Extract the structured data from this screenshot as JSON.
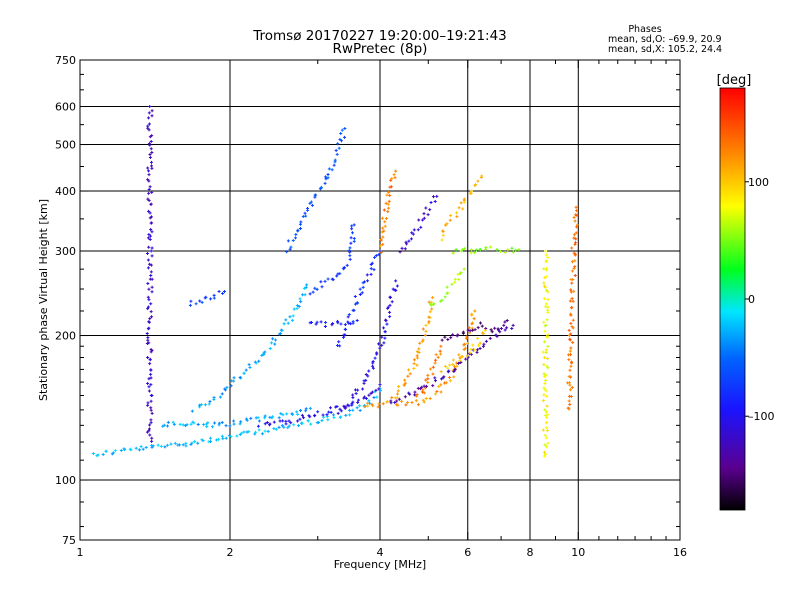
{
  "chart_data": {
    "type": "scatter",
    "title": "Tromsø 20170227 19:20:00–19:21:43",
    "subtitle": "RwPretec (8p)",
    "xlabel": "Frequency [MHz]",
    "ylabel": "Stationary phase Virtual Height [km]",
    "x_scale": "log",
    "y_scale": "log",
    "xlim": [
      1,
      16
    ],
    "ylim": [
      75,
      750
    ],
    "x_ticks": [
      1,
      2,
      4,
      6,
      8,
      10,
      16
    ],
    "y_ticks": [
      75,
      100,
      200,
      300,
      400,
      500,
      600,
      750
    ],
    "x_tick_labels": [
      "1",
      "2",
      "4",
      "6",
      "8",
      "10",
      "16"
    ],
    "y_tick_labels": [
      "75",
      "100",
      "200",
      "300",
      "400",
      "500",
      "600",
      "750"
    ],
    "grid": true,
    "stats": {
      "heading": "Phases",
      "o_line": "mean, sd,O: –69.9, 20.9",
      "x_line": "mean, sd,X: 105.2, 24.4"
    },
    "colorbar": {
      "label": "[deg]",
      "range": [
        -180,
        180
      ],
      "ticks": [
        100,
        0,
        -100
      ],
      "tick_labels": [
        "100",
        "0",
        "–100"
      ]
    },
    "point_colormap": "rainbow (black → purple → blue → cyan → green → yellow → orange → red)",
    "traces": [
      {
        "x": [
          1.06,
          1.2,
          1.4,
          1.6,
          1.8,
          2.0,
          2.2,
          2.4,
          2.6,
          2.8,
          3.0,
          3.2,
          3.4,
          3.6,
          3.8,
          4.0
        ],
        "y": [
          113,
          115,
          117,
          119,
          121,
          123,
          125,
          127,
          129,
          131,
          133,
          135,
          137,
          140,
          145,
          155
        ],
        "phase": -25
      },
      {
        "x": [
          1.45,
          1.6,
          1.8,
          2.0,
          2.3,
          2.6,
          2.9
        ],
        "y": [
          130,
          131,
          130,
          131,
          134,
          137,
          141
        ],
        "phase": -30
      },
      {
        "x": [
          1.7,
          1.9,
          2.1,
          2.3,
          2.5,
          2.7,
          2.85
        ],
        "y": [
          140,
          150,
          165,
          180,
          200,
          225,
          255
        ],
        "phase": -30
      },
      {
        "x": [
          2.3,
          2.6,
          2.9,
          3.1,
          3.3,
          3.6,
          3.8,
          4.0
        ],
        "y": [
          130,
          132,
          136,
          138,
          141,
          145,
          150,
          158
        ],
        "phase": -105
      },
      {
        "x": [
          3.3,
          3.5,
          3.7,
          3.9,
          4.1,
          4.3
        ],
        "y": [
          138,
          145,
          158,
          175,
          205,
          260
        ],
        "phase": -105
      },
      {
        "x": [
          3.7,
          3.9,
          4.1,
          4.3,
          4.5,
          4.7,
          4.9,
          5.1
        ],
        "y": [
          143,
          143,
          145,
          150,
          160,
          175,
          200,
          240
        ],
        "phase": 115
      },
      {
        "x": [
          4.3,
          4.5,
          4.7,
          4.9,
          5.1,
          5.3
        ],
        "y": [
          143,
          145,
          147,
          155,
          170,
          190
        ],
        "phase": 130
      },
      {
        "x": [
          4.8,
          5.0,
          5.2,
          5.4,
          5.6,
          5.8,
          6.0,
          6.2
        ],
        "y": [
          145,
          148,
          152,
          158,
          165,
          180,
          200,
          225
        ],
        "phase": 120
      },
      {
        "x": [
          4.2,
          4.6,
          5.0,
          5.4,
          5.8,
          6.2,
          6.6,
          7.0,
          7.4
        ],
        "y": [
          145,
          150,
          158,
          165,
          175,
          185,
          195,
          205,
          210
        ],
        "phase": -130
      },
      {
        "x": [
          5.3,
          5.6,
          6.0,
          6.4,
          6.8,
          7.2
        ],
        "y": [
          195,
          200,
          205,
          210,
          205,
          215
        ],
        "phase": -150
      },
      {
        "x": [
          2.9,
          3.0,
          3.2,
          3.4,
          3.5,
          3.55
        ],
        "y": [
          245,
          252,
          262,
          275,
          300,
          340
        ],
        "phase": -75
      },
      {
        "x": [
          3.3,
          3.4,
          3.5,
          3.6,
          3.8,
          4.0
        ],
        "y": [
          190,
          205,
          220,
          240,
          270,
          300
        ],
        "phase": -80
      },
      {
        "x": [
          2.9,
          3.1,
          3.3,
          3.6
        ],
        "y": [
          215,
          210,
          212,
          215
        ],
        "phase": -90
      },
      {
        "x": [
          5.0,
          5.3,
          5.5,
          5.7,
          5.9
        ],
        "y": [
          230,
          238,
          250,
          262,
          275
        ],
        "phase": 60
      },
      {
        "x": [
          5.6,
          5.9,
          6.2,
          6.5,
          6.8,
          7.2,
          7.6
        ],
        "y": [
          300,
          302,
          298,
          303,
          305,
          300,
          302
        ],
        "phase": 55
      },
      {
        "x": [
          5.3,
          5.6,
          5.9,
          6.2,
          6.5
        ],
        "y": [
          170,
          175,
          180,
          190,
          205
        ],
        "phase": 95
      },
      {
        "x": [
          4.0,
          4.05,
          4.1,
          4.2,
          4.3
        ],
        "y": [
          300,
          330,
          360,
          400,
          440
        ],
        "phase": 130
      },
      {
        "x": [
          2.6,
          2.7,
          2.8,
          2.9,
          3.0,
          3.1,
          3.2,
          3.3,
          3.4
        ],
        "y": [
          300,
          325,
          350,
          370,
          395,
          420,
          450,
          490,
          540
        ],
        "phase": -60
      },
      {
        "x": [
          4.4,
          4.6,
          4.8,
          5.0,
          5.2
        ],
        "y": [
          300,
          320,
          340,
          365,
          390
        ],
        "phase": -120
      },
      {
        "x": [
          5.3,
          5.5,
          5.8,
          6.1,
          6.4
        ],
        "y": [
          320,
          345,
          370,
          400,
          430
        ],
        "phase": 105
      },
      {
        "x": [
          1.38,
          1.38,
          1.38,
          1.38,
          1.38
        ],
        "y": [
          120,
          215,
          300,
          400,
          600
        ],
        "phase": -120
      },
      {
        "x": [
          1.65,
          1.75,
          1.85,
          1.95
        ],
        "y": [
          233,
          237,
          242,
          247
        ],
        "phase": -70
      },
      {
        "x": [
          8.6,
          8.6,
          8.6,
          8.6
        ],
        "y": [
          112,
          150,
          200,
          300
        ],
        "phase": 80
      },
      {
        "x": [
          9.6,
          9.7,
          9.8,
          9.9
        ],
        "y": [
          140,
          230,
          300,
          370
        ],
        "phase": 135
      }
    ]
  }
}
